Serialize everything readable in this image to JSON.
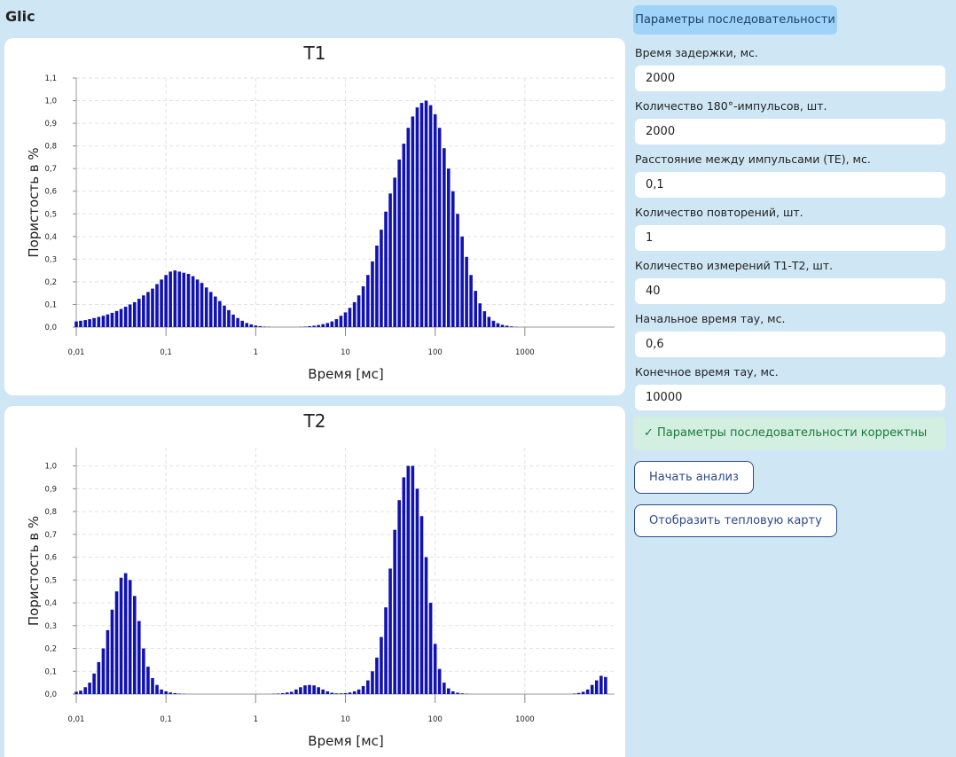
{
  "app_title": "Glic",
  "chart_data": [
    {
      "type": "bar",
      "title": "T1",
      "x_label": "Время [мс]",
      "y_label": "Пористость в %",
      "color": "#1212b0",
      "xscale": "log",
      "xlim": [
        0.01,
        10000
      ],
      "ylim": [
        0,
        1.1
      ],
      "grid": true,
      "xticks": [
        {
          "value": 0.01,
          "label": "0,01"
        },
        {
          "value": 0.1,
          "label": "0,1"
        },
        1,
        10,
        100,
        1000
      ],
      "yticks": [
        {
          "value": 0,
          "label": "0,0"
        },
        {
          "value": 0.1,
          "label": "0,1"
        },
        {
          "value": 0.2,
          "label": "0,2"
        },
        {
          "value": 0.3,
          "label": "0,3"
        },
        {
          "value": 0.4,
          "label": "0,4"
        },
        {
          "value": 0.5,
          "label": "0,5"
        },
        {
          "value": 0.6,
          "label": "0,6"
        },
        {
          "value": 0.7,
          "label": "0,7"
        },
        {
          "value": 0.8,
          "label": "0,8"
        },
        {
          "value": 0.9,
          "label": "0,9"
        },
        {
          "value": 1.0,
          "label": "1,0"
        },
        {
          "value": 1.1,
          "label": "1,1"
        }
      ],
      "x": [
        0.01,
        0.0112,
        0.0126,
        0.0141,
        0.0158,
        0.0178,
        0.02,
        0.0224,
        0.0251,
        0.0282,
        0.0316,
        0.0355,
        0.0398,
        0.0447,
        0.0501,
        0.0562,
        0.0631,
        0.0708,
        0.0794,
        0.0891,
        0.1,
        0.112,
        0.126,
        0.141,
        0.158,
        0.178,
        0.2,
        0.224,
        0.251,
        0.282,
        0.316,
        0.355,
        0.398,
        0.447,
        0.501,
        0.562,
        0.631,
        0.708,
        0.794,
        0.891,
        1,
        1.12,
        1.26,
        1.41,
        1.58,
        1.78,
        2,
        2.24,
        2.51,
        2.82,
        3.16,
        3.55,
        3.98,
        4.47,
        5.01,
        5.62,
        6.31,
        7.08,
        7.94,
        8.91,
        10,
        11.2,
        12.6,
        14.1,
        15.8,
        17.8,
        20,
        22.4,
        25.1,
        28.2,
        31.6,
        35.5,
        39.8,
        44.7,
        50.1,
        56.2,
        63.1,
        70.8,
        79.4,
        89.1,
        100,
        112,
        126,
        141,
        158,
        178,
        200,
        224,
        251,
        282,
        316,
        355,
        398,
        447,
        501,
        562,
        631,
        708,
        794,
        891,
        1000,
        1120,
        1260,
        1410,
        1580,
        1780,
        2000,
        2240,
        2510,
        2820,
        3160,
        3550,
        3980,
        4470,
        5010,
        5620,
        6310,
        7080,
        7940
      ],
      "values": [
        0.025,
        0.028,
        0.031,
        0.035,
        0.04,
        0.045,
        0.05,
        0.056,
        0.063,
        0.071,
        0.08,
        0.09,
        0.1,
        0.11,
        0.125,
        0.14,
        0.155,
        0.17,
        0.19,
        0.21,
        0.23,
        0.245,
        0.25,
        0.245,
        0.24,
        0.235,
        0.225,
        0.21,
        0.195,
        0.175,
        0.155,
        0.135,
        0.115,
        0.095,
        0.075,
        0.055,
        0.04,
        0.028,
        0.018,
        0.012,
        0.007,
        0.004,
        0.002,
        0.001,
        0,
        0,
        0,
        0,
        0,
        0,
        0.001,
        0.002,
        0.004,
        0.006,
        0.009,
        0.013,
        0.018,
        0.025,
        0.035,
        0.05,
        0.065,
        0.085,
        0.11,
        0.14,
        0.18,
        0.23,
        0.29,
        0.36,
        0.43,
        0.51,
        0.59,
        0.66,
        0.74,
        0.81,
        0.88,
        0.93,
        0.97,
        0.99,
        1.0,
        0.98,
        0.94,
        0.88,
        0.79,
        0.7,
        0.6,
        0.5,
        0.4,
        0.31,
        0.23,
        0.16,
        0.105,
        0.07,
        0.045,
        0.028,
        0.017,
        0.01,
        0.006,
        0.003,
        0.001,
        0,
        0,
        0,
        0,
        0,
        0,
        0,
        0,
        0,
        0,
        0,
        0,
        0,
        0,
        0,
        0,
        0,
        0,
        0,
        0
      ]
    },
    {
      "type": "bar",
      "title": "T2",
      "x_label": "Время [мс]",
      "y_label": "Пористость в %",
      "color": "#1212b0",
      "xscale": "log",
      "xlim": [
        0.01,
        10000
      ],
      "ylim": [
        0,
        1.08
      ],
      "grid": true,
      "xticks": [
        {
          "value": 0.01,
          "label": "0,01"
        },
        {
          "value": 0.1,
          "label": "0,1"
        },
        1,
        10,
        100,
        1000
      ],
      "yticks": [
        {
          "value": 0,
          "label": "0,0"
        },
        {
          "value": 0.1,
          "label": "0,1"
        },
        {
          "value": 0.2,
          "label": "0,2"
        },
        {
          "value": 0.3,
          "label": "0,3"
        },
        {
          "value": 0.4,
          "label": "0,4"
        },
        {
          "value": 0.5,
          "label": "0,5"
        },
        {
          "value": 0.6,
          "label": "0,6"
        },
        {
          "value": 0.7,
          "label": "0,7"
        },
        {
          "value": 0.8,
          "label": "0,8"
        },
        {
          "value": 0.9,
          "label": "0,9"
        },
        {
          "value": 1.0,
          "label": "1,0"
        }
      ],
      "x": [
        0.01,
        0.0112,
        0.0126,
        0.0141,
        0.0158,
        0.0178,
        0.02,
        0.0224,
        0.0251,
        0.0282,
        0.0316,
        0.0355,
        0.0398,
        0.0447,
        0.0501,
        0.0562,
        0.0631,
        0.0708,
        0.0794,
        0.0891,
        0.1,
        0.112,
        0.126,
        0.141,
        0.158,
        0.178,
        0.2,
        0.224,
        0.251,
        0.282,
        0.316,
        0.355,
        0.398,
        0.447,
        0.501,
        0.562,
        0.631,
        0.708,
        0.794,
        0.891,
        1,
        1.12,
        1.26,
        1.41,
        1.58,
        1.78,
        2,
        2.24,
        2.51,
        2.82,
        3.16,
        3.55,
        3.98,
        4.47,
        5.01,
        5.62,
        6.31,
        7.08,
        7.94,
        8.91,
        10,
        11.2,
        12.6,
        14.1,
        15.8,
        17.8,
        20,
        22.4,
        25.1,
        28.2,
        31.6,
        35.5,
        39.8,
        44.7,
        50.1,
        56.2,
        63.1,
        70.8,
        79.4,
        89.1,
        100,
        112,
        126,
        141,
        158,
        178,
        200,
        224,
        251,
        282,
        316,
        355,
        398,
        447,
        501,
        562,
        631,
        708,
        794,
        891,
        1000,
        1120,
        1260,
        1410,
        1580,
        1780,
        2000,
        2240,
        2510,
        2820,
        3160,
        3550,
        3980,
        4470,
        5010,
        5620,
        6310,
        7080,
        7940
      ],
      "values": [
        0.01,
        0.015,
        0.03,
        0.05,
        0.09,
        0.14,
        0.2,
        0.28,
        0.37,
        0.45,
        0.51,
        0.53,
        0.5,
        0.43,
        0.32,
        0.2,
        0.12,
        0.07,
        0.04,
        0.02,
        0.012,
        0.007,
        0.004,
        0.002,
        0.001,
        0,
        0,
        0,
        0,
        0,
        0,
        0,
        0,
        0,
        0,
        0,
        0,
        0,
        0,
        0,
        0,
        0,
        0,
        0,
        0.001,
        0.002,
        0.004,
        0.007,
        0.01,
        0.02,
        0.03,
        0.038,
        0.04,
        0.038,
        0.03,
        0.02,
        0.012,
        0.006,
        0.003,
        0.003,
        0.004,
        0.007,
        0.012,
        0.02,
        0.035,
        0.06,
        0.1,
        0.16,
        0.25,
        0.38,
        0.55,
        0.72,
        0.85,
        0.95,
        1.0,
        1.0,
        0.9,
        0.78,
        0.6,
        0.4,
        0.22,
        0.11,
        0.05,
        0.025,
        0.012,
        0.006,
        0.003,
        0.001,
        0,
        0,
        0,
        0,
        0,
        0,
        0,
        0,
        0,
        0,
        0,
        0,
        0,
        0,
        0,
        0,
        0,
        0,
        0,
        0,
        0,
        0,
        0,
        0.002,
        0.005,
        0.01,
        0.02,
        0.04,
        0.06,
        0.08,
        0.075
      ]
    }
  ],
  "panel": {
    "tab": "Параметры последовательности",
    "fields": [
      {
        "label": "Время задержки, мс.",
        "value": "2000"
      },
      {
        "label": "Количество 180°-импульсов, шт.",
        "value": "2000"
      },
      {
        "label": "Расстояние между импульсами (TE), мс.",
        "value": "0,1"
      },
      {
        "label": "Количество повторений, шт.",
        "value": "1"
      },
      {
        "label": "Количество измерений Т1-Т2, шт.",
        "value": "40"
      },
      {
        "label": "Начальное время тау, мс.",
        "value": "0,6"
      },
      {
        "label": "Конечное время тау, мс.",
        "value": "10000"
      }
    ],
    "status": "✓ Параметры последовательности корректны",
    "buttons": [
      "Начать анализ",
      "Отобразить тепловую карту"
    ]
  }
}
